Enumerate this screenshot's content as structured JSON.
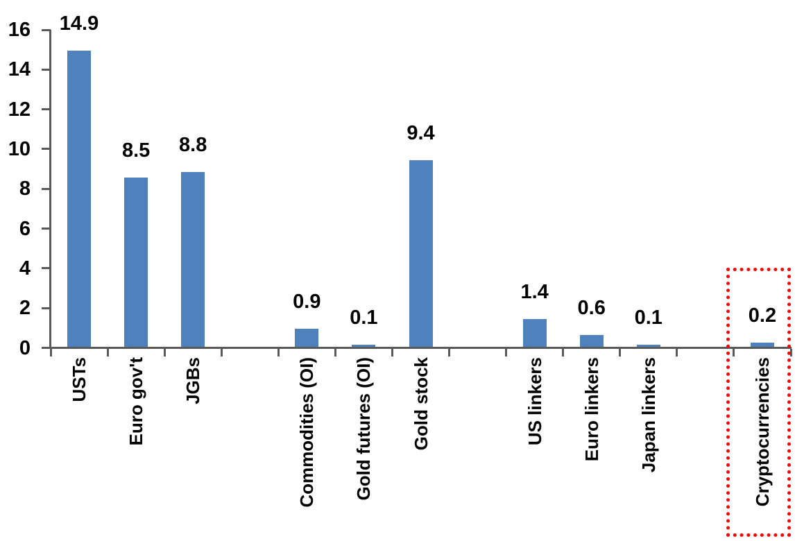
{
  "chart_data": {
    "type": "bar",
    "title": "",
    "xlabel": "",
    "ylabel": "",
    "ylim": [
      0,
      16
    ],
    "y_ticks": [
      0,
      2,
      4,
      6,
      8,
      10,
      12,
      14,
      16
    ],
    "grid": false,
    "legend": false,
    "bar_color": "#4F81BD",
    "axis_color": "#595959",
    "text_color": "#000000",
    "value_label_format": "one_decimal",
    "slots_total": 13,
    "bars": [
      {
        "label": "USTs",
        "value": 14.9,
        "slot": 1,
        "highlighted": false
      },
      {
        "label": "Euro gov't",
        "value": 8.5,
        "slot": 2,
        "highlighted": false
      },
      {
        "label": "JGBs",
        "value": 8.8,
        "slot": 3,
        "highlighted": false
      },
      {
        "label": "Commodities (OI)",
        "value": 0.9,
        "slot": 5,
        "highlighted": false
      },
      {
        "label": "Gold futures (OI)",
        "value": 0.1,
        "slot": 6,
        "highlighted": false
      },
      {
        "label": "Gold stock",
        "value": 9.4,
        "slot": 7,
        "highlighted": false
      },
      {
        "label": "US linkers",
        "value": 1.4,
        "slot": 9,
        "highlighted": false
      },
      {
        "label": "Euro linkers",
        "value": 0.6,
        "slot": 10,
        "highlighted": false
      },
      {
        "label": "Japan linkers",
        "value": 0.1,
        "slot": 11,
        "highlighted": false
      },
      {
        "label": "Cryptocurrencies",
        "value": 0.2,
        "slot": 13,
        "highlighted": true
      }
    ],
    "highlight": {
      "target": "Cryptocurrencies",
      "style": "dotted-rectangle",
      "color": "#FF0000"
    }
  }
}
